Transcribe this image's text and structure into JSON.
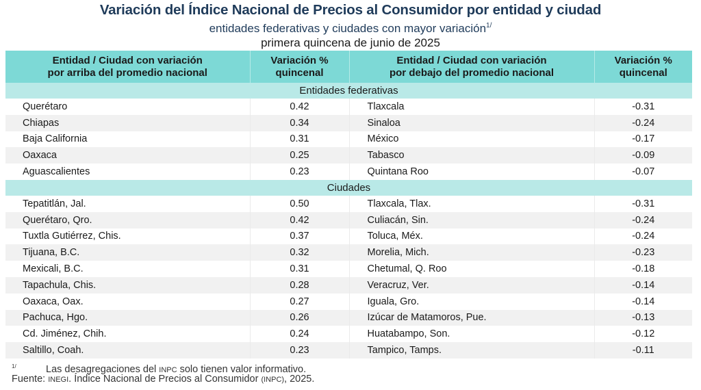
{
  "header": {
    "title": "Variación del Índice Nacional de Precios al Consumidor por entidad y ciudad",
    "subtitle": "entidades federativas y ciudades con mayor variación",
    "subtitle_note": "1/",
    "period": "primera quincena de junio de 2025"
  },
  "table": {
    "columns": [
      {
        "line1": "Entidad / Ciudad con variación",
        "line2": "por arriba del promedio nacional"
      },
      {
        "line1": "Variación %",
        "line2": "quincenal"
      },
      {
        "line1": "Entidad / Ciudad con variación",
        "line2": "por debajo del promedio nacional"
      },
      {
        "line1": "Variación %",
        "line2": "quincenal"
      }
    ],
    "sections": [
      {
        "label": "Entidades federativas",
        "rows": [
          {
            "above": "Querétaro",
            "above_val": "0.42",
            "below": "Tlaxcala",
            "below_val": "-0.31"
          },
          {
            "above": "Chiapas",
            "above_val": "0.34",
            "below": "Sinaloa",
            "below_val": "-0.24"
          },
          {
            "above": "Baja California",
            "above_val": "0.31",
            "below": "México",
            "below_val": "-0.17"
          },
          {
            "above": "Oaxaca",
            "above_val": "0.25",
            "below": "Tabasco",
            "below_val": "-0.09"
          },
          {
            "above": "Aguascalientes",
            "above_val": "0.23",
            "below": "Quintana Roo",
            "below_val": "-0.07"
          }
        ]
      },
      {
        "label": "Ciudades",
        "rows": [
          {
            "above": "Tepatitlán, Jal.",
            "above_val": "0.50",
            "below": "Tlaxcala, Tlax.",
            "below_val": "-0.31"
          },
          {
            "above": "Querétaro, Qro.",
            "above_val": "0.42",
            "below": "Culiacán, Sin.",
            "below_val": "-0.24"
          },
          {
            "above": "Tuxtla Gutiérrez, Chis.",
            "above_val": "0.37",
            "below": "Toluca, Méx.",
            "below_val": "-0.24"
          },
          {
            "above": "Tijuana, B.C.",
            "above_val": "0.32",
            "below": "Morelia, Mich.",
            "below_val": "-0.23"
          },
          {
            "above": "Mexicali, B.C.",
            "above_val": "0.31",
            "below": "Chetumal, Q. Roo",
            "below_val": "-0.18"
          },
          {
            "above": "Tapachula, Chis.",
            "above_val": "0.28",
            "below": "Veracruz, Ver.",
            "below_val": "-0.14"
          },
          {
            "above": "Oaxaca, Oax.",
            "above_val": "0.27",
            "below": "Iguala, Gro.",
            "below_val": "-0.14"
          },
          {
            "above": "Pachuca, Hgo.",
            "above_val": "0.26",
            "below": "Izúcar de Matamoros, Pue.",
            "below_val": "-0.13"
          },
          {
            "above": "Cd. Jiménez, Chih.",
            "above_val": "0.24",
            "below": "Huatabampo, Son.",
            "below_val": "-0.12"
          },
          {
            "above": "Saltillo, Coah.",
            "above_val": "0.23",
            "below": "Tampico, Tamps.",
            "below_val": "-0.11"
          }
        ]
      }
    ]
  },
  "footer": {
    "note_mark": "1/",
    "note_pre": "Las desagregaciones del ",
    "note_abbr": "INPC",
    "note_post": " solo tienen valor informativo.",
    "source_pre": "Fuente: ",
    "source_abbr1": "INEGI",
    "source_mid": ". Índice Nacional de Precios al Consumidor ",
    "source_abbr2": "(INPC)",
    "source_post": ", 2025."
  }
}
